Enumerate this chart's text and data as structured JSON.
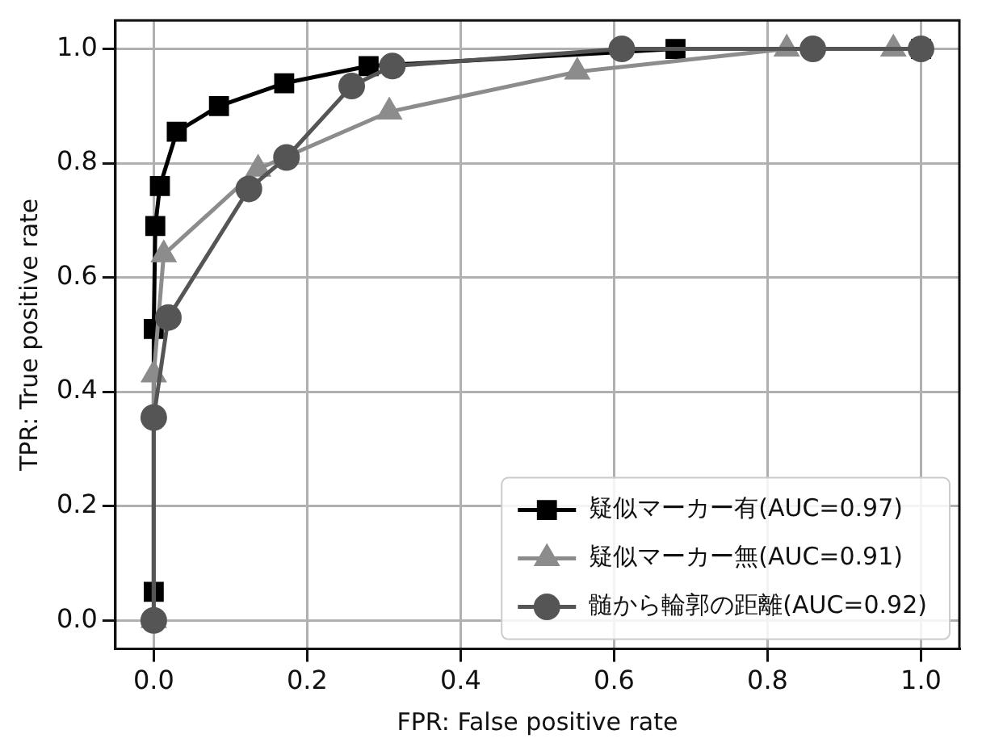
{
  "chart_data": {
    "type": "line",
    "xlabel": "FPR: False positive rate",
    "ylabel": "TPR: True positive rate",
    "xlim": [
      -0.05,
      1.05
    ],
    "ylim": [
      -0.05,
      1.05
    ],
    "xticks": [
      {
        "value": 0,
        "label": "0.0"
      },
      0.2,
      0.4,
      0.6,
      0.8,
      {
        "value": 1,
        "label": "1.0"
      }
    ],
    "yticks": [
      {
        "value": 0,
        "label": "0.0"
      },
      0.2,
      0.4,
      0.6,
      0.8,
      {
        "value": 1,
        "label": "1.0"
      }
    ],
    "grid": true,
    "legend": "bottom right",
    "line_style": "solid",
    "series": [
      {
        "name": "疑似マーカー有(AUC=0.97)",
        "color": "#000000",
        "marker": "square",
        "x": [
          0,
          0,
          0.002,
          0.008,
          0.03,
          0.085,
          0.17,
          0.28,
          0.68,
          1
        ],
        "values": [
          0.05,
          0.51,
          0.69,
          0.76,
          0.855,
          0.9,
          0.94,
          0.97,
          1,
          1
        ]
      },
      {
        "name": "疑似マーカー無(AUC=0.91)",
        "color": "#8c8c8c",
        "marker": "triangle",
        "x": [
          0,
          0,
          0.013,
          0.136,
          0.307,
          0.552,
          0.825,
          0.964
        ],
        "values": [
          0,
          0.43,
          0.64,
          0.79,
          0.89,
          0.96,
          1,
          1
        ]
      },
      {
        "name": "髄から輪郭の距離(AUC=0.92)",
        "color": "#555555",
        "marker": "circle",
        "x": [
          0,
          0,
          0.019,
          0.124,
          0.173,
          0.258,
          0.311,
          0.61,
          0.859,
          1
        ],
        "values": [
          0,
          0.355,
          0.53,
          0.755,
          0.81,
          0.935,
          0.97,
          1,
          1,
          1
        ]
      }
    ]
  }
}
